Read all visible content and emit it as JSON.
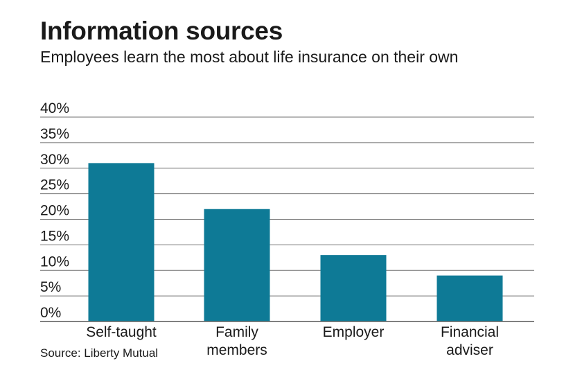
{
  "chart_data": {
    "type": "bar",
    "title": "Information sources",
    "subtitle": "Employees learn the most about life insurance on their own",
    "source": "Source: Liberty Mutual",
    "categories": [
      [
        "Self-taught"
      ],
      [
        "Family",
        "members"
      ],
      [
        "Employer"
      ],
      [
        "Financial",
        "adviser"
      ]
    ],
    "values": [
      31,
      22,
      13,
      9
    ],
    "ylim": [
      0,
      40
    ],
    "yticks": [
      0,
      5,
      10,
      15,
      20,
      25,
      30,
      35,
      40
    ],
    "ytick_labels": [
      "0%",
      "5%",
      "10%",
      "15%",
      "20%",
      "25%",
      "30%",
      "35%",
      "40%"
    ],
    "grid": true,
    "bar_color": "#0e7a96",
    "grid_color": "#6f6f6f"
  }
}
